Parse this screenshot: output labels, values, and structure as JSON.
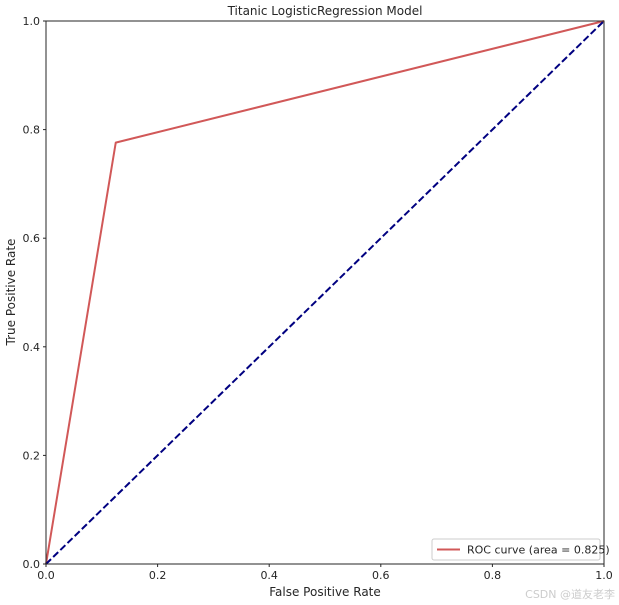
{
  "chart_data": {
    "type": "line",
    "title": "Titanic LogisticRegression Model",
    "xlabel": "False Positive Rate",
    "ylabel": "True Positive Rate",
    "xlim": [
      0.0,
      1.0
    ],
    "ylim": [
      0.0,
      1.0
    ],
    "x_ticks": [
      "0.0",
      "0.2",
      "0.4",
      "0.6",
      "0.8",
      "1.0"
    ],
    "y_ticks": [
      "0.0",
      "0.2",
      "0.4",
      "0.6",
      "0.8",
      "1.0"
    ],
    "grid": false,
    "legend_position": "lower-right",
    "series": [
      {
        "name": "ROC curve (area = 0.825)",
        "color": "#d15858",
        "style": "solid",
        "x": [
          0.0,
          0.125,
          1.0
        ],
        "y": [
          0.0,
          0.776,
          1.0
        ]
      },
      {
        "color": "#000080",
        "style": "dashed",
        "x": [
          0.0,
          1.0
        ],
        "y": [
          0.0,
          1.0
        ]
      }
    ]
  },
  "watermark": "CSDN @道友老李"
}
